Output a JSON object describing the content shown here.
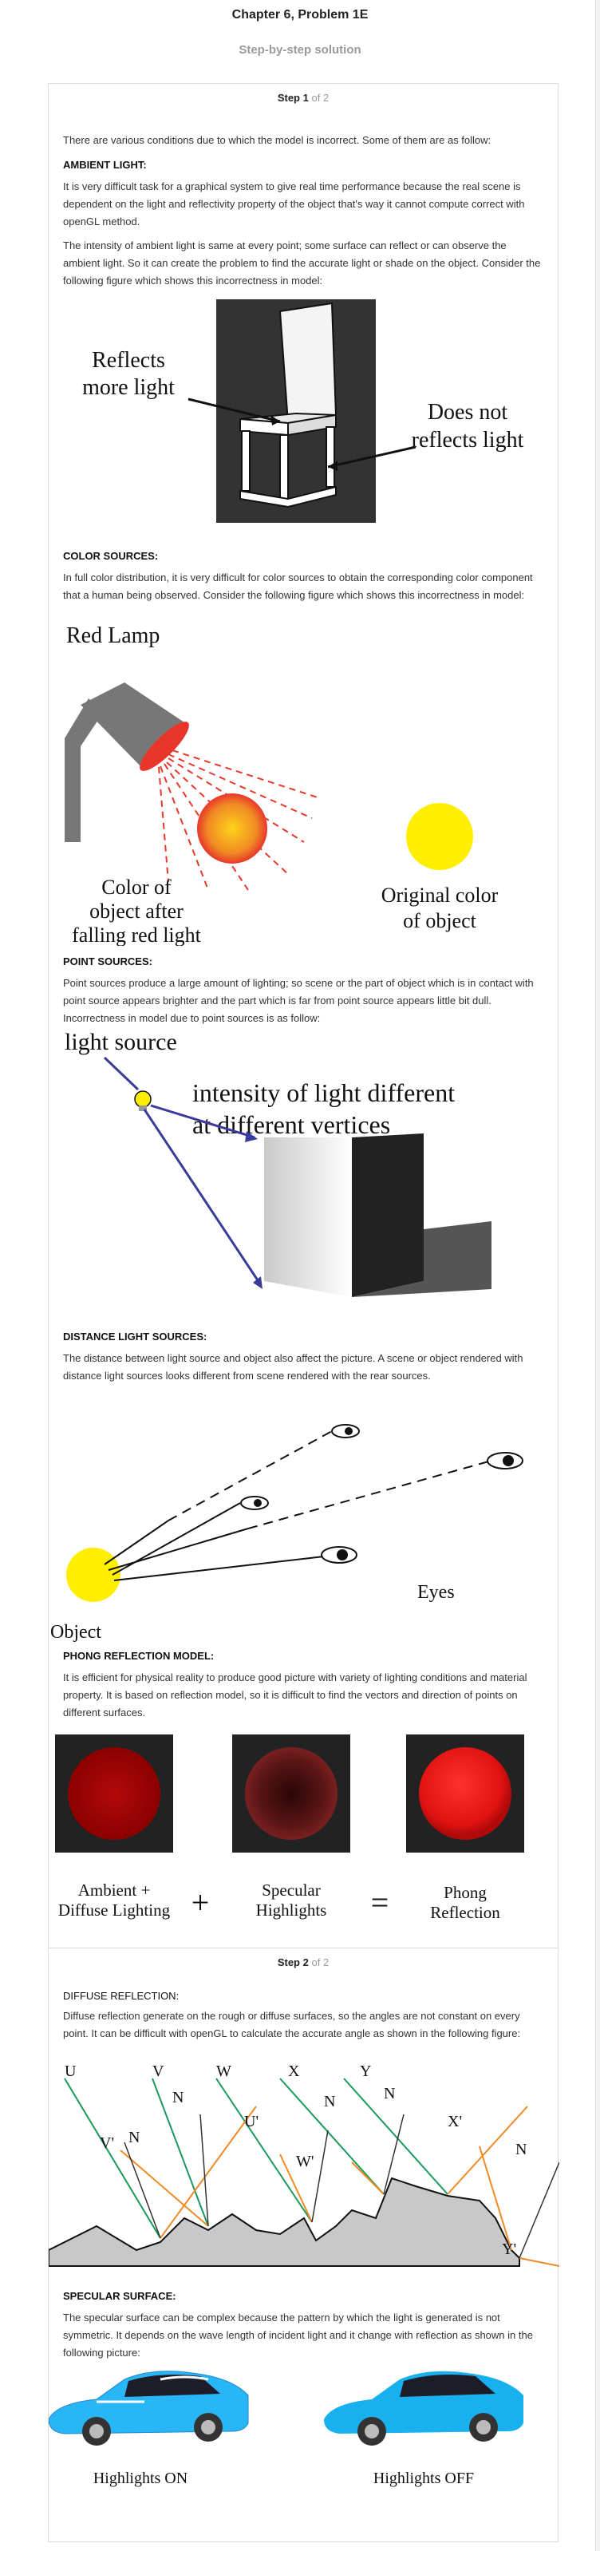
{
  "header": {
    "title": "Chapter 6, Problem 1E",
    "subtitle": "Step-by-step solution"
  },
  "step1": {
    "label": "Step",
    "number": "1",
    "of": "of 2",
    "intro": "There are various conditions due to which the model is incorrect. Some of them are as follow:",
    "ambient_heading": "AMBIENT LIGHT:",
    "ambient_p1": "It is very difficult task for a graphical system to give real time performance because the real scene is dependent on the light and reflectivity property of the object that's way it cannot compute correct with openGL method.",
    "ambient_p2": "The intensity of ambient light is same at every point; some surface can reflect or can observe the ambient light. So it can create the problem to find the accurate light or shade on the object. Consider the following figure which shows this incorrectness in model:",
    "fig1": {
      "label_left_1": "Reflects",
      "label_left_2": "more light",
      "label_right_1": "Does not",
      "label_right_2": "reflects light"
    },
    "color_heading": "COLOR SOURCES:",
    "color_p1": "In full color distribution, it is very difficult for color sources to obtain the corresponding color component that a human being observed. Consider the following figure which shows this incorrectness in model:",
    "fig2": {
      "lamp": "Red Lamp",
      "after_1": "Color of",
      "after_2": "object after",
      "after_3": "falling red light",
      "orig_1": "Original color",
      "orig_2": "of object"
    },
    "point_heading": "POINT SOURCES:",
    "point_p1": "Point sources produce a large amount of lighting; so scene or the part of object which is in contact with point source appears brighter and the part which is far from point source appears little bit dull. Incorrectness in model due to point sources is as follow:",
    "fig3": {
      "source": "light source",
      "intensity_1": "intensity of light different",
      "intensity_2": "at different vertices"
    },
    "distance_heading": "DISTANCE LIGHT SOURCES:",
    "distance_p1": "The distance between light source and object also affect the picture. A scene or object rendered with distance light sources looks different from scene rendered with the rear sources.",
    "fig4": {
      "eyes": "Eyes",
      "object": "Object"
    },
    "phong_heading": "PHONG REFLECTION MODEL:",
    "phong_p1": "It is efficient for physical reality to produce good picture with variety of lighting conditions and material property. It is based on reflection model, so it is difficult to find the vectors and direction of points on different surfaces.",
    "fig5": {
      "a1": "Ambient +",
      "a2": "Diffuse Lighting",
      "plus": "+",
      "s1": "Specular",
      "s2": "Highlights",
      "eq": "=",
      "p1": "Phong",
      "p2": "Reflection"
    }
  },
  "step2": {
    "label": "Step",
    "number": "2",
    "of": "of 2",
    "diffuse_heading": "DIFFUSE REFLECTION:",
    "diffuse_p1": "Diffuse reflection generate on the rough or diffuse surfaces, so the angles are not constant on every point. It can be difficult with openGL to calculate the accurate angle as shown in the following figure:",
    "fig6": {
      "U": "U",
      "V": "V",
      "W": "W",
      "X": "X",
      "Y": "Y",
      "N1": "N",
      "N2": "N",
      "N3": "N",
      "N4": "N",
      "N5": "N",
      "Up": "U'",
      "Vp": "V'",
      "Wp": "W'",
      "Xp": "X'",
      "Yp": "Y'"
    },
    "specular_heading": "SPECULAR SURFACE:",
    "specular_p1": "The specular surface can be complex because the pattern by which the light is generated is not symmetric. It depends on the wave length of incident light and it change with reflection as shown in the following picture:",
    "fig7": {
      "on": "Highlights ON",
      "off": "Highlights OFF"
    }
  },
  "colors": {
    "accent_red": "#e8372a",
    "yellow": "#ffee00",
    "car_blue": "#29b6f6",
    "green_ray": "#1a9a5a",
    "orange_ray": "#f08a24",
    "purple": "#3b3b9a"
  }
}
